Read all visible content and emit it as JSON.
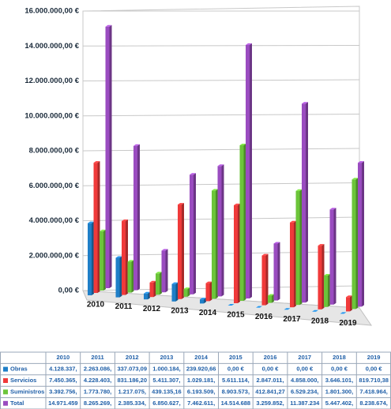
{
  "chart_data": {
    "type": "bar",
    "categories": [
      "2010",
      "2011",
      "2012",
      "2013",
      "2014",
      "2015",
      "2016",
      "2017",
      "2018",
      "2019"
    ],
    "series": [
      {
        "name": "Obras",
        "color": "#1f7fc8",
        "values": [
          4128337,
          2263086,
          337073.09,
          1000184,
          239920.66,
          0,
          0,
          0,
          0,
          0
        ],
        "value_labels": [
          "4.128.337,",
          "2.263.086,",
          "337.073,09",
          "1.000.184,",
          "239.920,66",
          "0,00 €",
          "0,00 €",
          "0,00 €",
          "0,00 €",
          "0,00 €"
        ]
      },
      {
        "name": "Servicios",
        "color": "#f03a3a",
        "values": [
          7450365,
          4228403,
          831186.2,
          5411307,
          1029181,
          5611114,
          2847011,
          4858000,
          3646101,
          819710.38
        ],
        "value_labels": [
          "7.450.365,",
          "4.228.403,",
          "831.186,20",
          "5.411.307,",
          "1.029.181,",
          "5.611.114,",
          "2.847.011,",
          "4.858.000,",
          "3.646.101,",
          "819.710,38"
        ]
      },
      {
        "name": "Suministros",
        "color": "#6cc53a",
        "values": [
          3392756,
          1773780,
          1217075,
          439135.16,
          6193509,
          8903573,
          412841.27,
          6529234,
          1801300,
          7418964
        ],
        "value_labels": [
          "3.392.756,",
          "1.773.780,",
          "1.217.075,",
          "439.135,16",
          "6.193.509,",
          "8.903.573,",
          "412.841,27",
          "6.529.234,",
          "1.801.300,",
          "7.418.964,"
        ]
      },
      {
        "name": "Total",
        "color": "#9a4cc0",
        "values": [
          14971459,
          8265269,
          2385334,
          6850627,
          7462611,
          14514688,
          3259852,
          11387234,
          5447402,
          8238674
        ],
        "value_labels": [
          "14.971.459",
          "8.265.269,",
          "2.385.334,",
          "6.850.627,",
          "7.462.611,",
          "14.514.688",
          "3.259.852,",
          "11.387.234",
          "5.447.402,",
          "8.238.674,"
        ]
      }
    ],
    "ylim": [
      0,
      16000000
    ],
    "yticks": [
      {
        "value": 0,
        "label": "0,00 €"
      },
      {
        "value": 2000000,
        "label": "2.000.000,00 €"
      },
      {
        "value": 4000000,
        "label": "4.000.000,00 €"
      },
      {
        "value": 6000000,
        "label": "6.000.000,00 €"
      },
      {
        "value": 8000000,
        "label": "8.000.000,00 €"
      },
      {
        "value": 10000000,
        "label": "10.000.000,00 €"
      },
      {
        "value": 12000000,
        "label": "12.000.000,00 €"
      },
      {
        "value": 14000000,
        "label": "14.000.000,00 €"
      },
      {
        "value": 16000000,
        "label": "16.000.000,00 €"
      }
    ],
    "grid": true
  }
}
